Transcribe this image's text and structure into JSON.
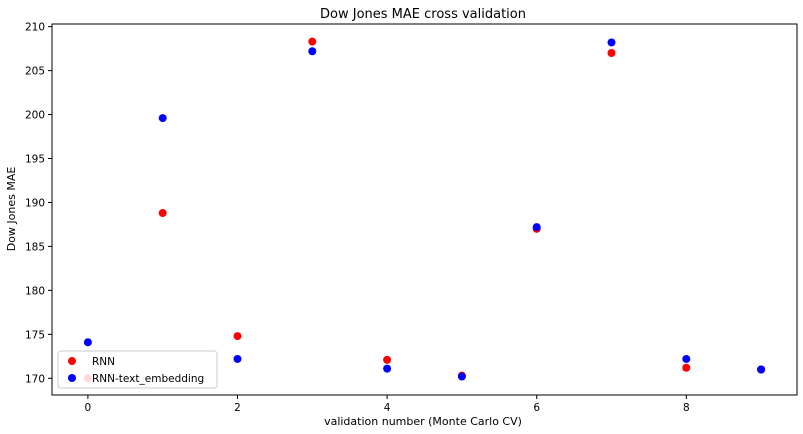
{
  "chart_data": {
    "type": "scatter",
    "title": "Dow Jones MAE cross validation",
    "xlabel": "validation number (Monte Carlo CV)",
    "ylabel": "Dow Jones MAE",
    "xlim": [
      -0.48,
      9.48
    ],
    "ylim": [
      168.1,
      210.3
    ],
    "xticks": [
      0,
      2,
      4,
      6,
      8
    ],
    "yticks": [
      170,
      175,
      180,
      185,
      190,
      195,
      200,
      205,
      210
    ],
    "grid": false,
    "legend_position": "lower-left",
    "series": [
      {
        "name": "RNN",
        "color": "#ff0000",
        "points": [
          {
            "x": 0,
            "y": 170.0
          },
          {
            "x": 1,
            "y": 188.8
          },
          {
            "x": 2,
            "y": 174.8
          },
          {
            "x": 3,
            "y": 208.3
          },
          {
            "x": 4,
            "y": 172.1
          },
          {
            "x": 5,
            "y": 170.3
          },
          {
            "x": 6,
            "y": 187.0
          },
          {
            "x": 7,
            "y": 207.0
          },
          {
            "x": 8,
            "y": 171.2
          },
          {
            "x": 9,
            "y": 171.0
          }
        ]
      },
      {
        "name": "RNN-text_embedding",
        "color": "#0000ff",
        "points": [
          {
            "x": 0,
            "y": 174.1
          },
          {
            "x": 1,
            "y": 199.6
          },
          {
            "x": 2,
            "y": 172.2
          },
          {
            "x": 3,
            "y": 207.2
          },
          {
            "x": 4,
            "y": 171.1
          },
          {
            "x": 5,
            "y": 170.2
          },
          {
            "x": 6,
            "y": 187.2
          },
          {
            "x": 7,
            "y": 208.2
          },
          {
            "x": 8,
            "y": 172.2
          },
          {
            "x": 9,
            "y": 171.0
          }
        ]
      }
    ]
  }
}
